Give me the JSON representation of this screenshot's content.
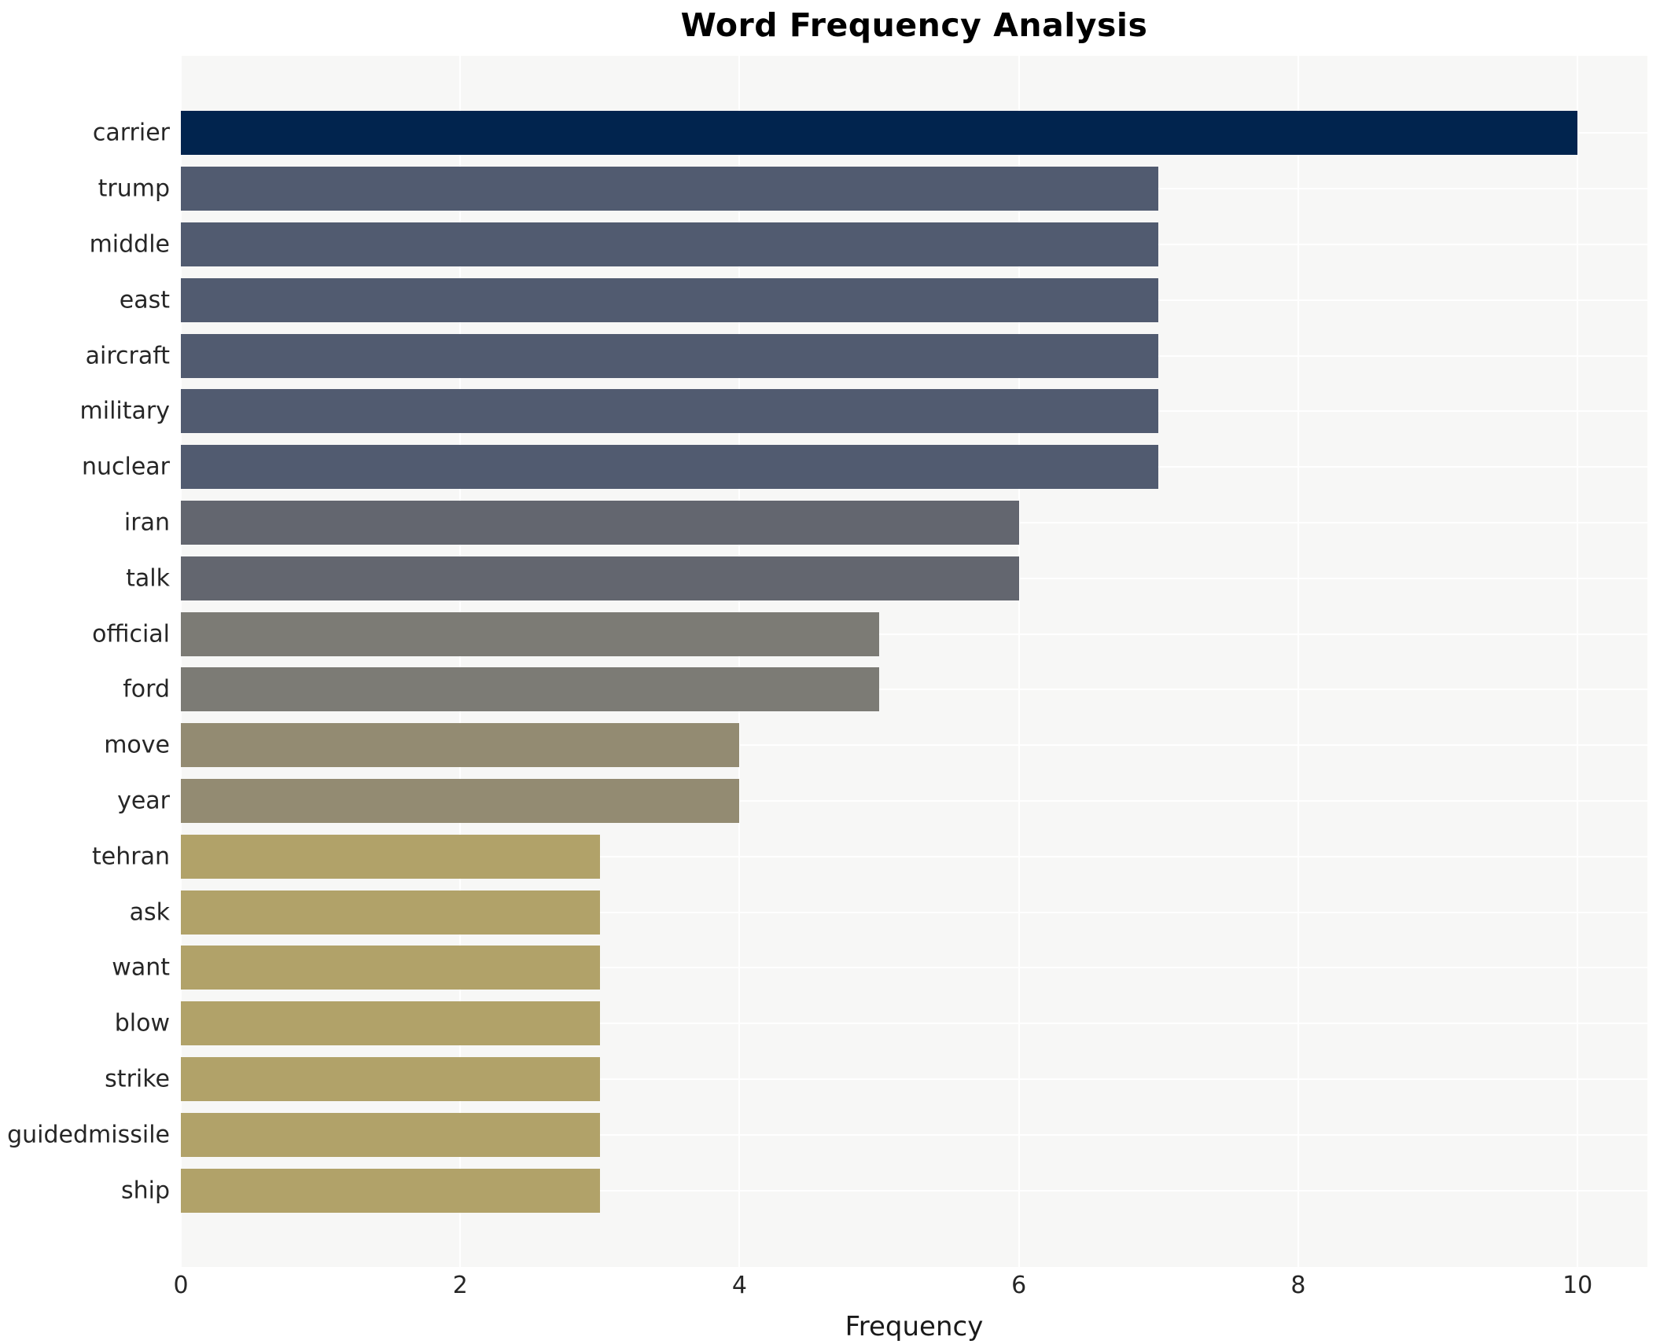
{
  "chart_data": {
    "type": "bar",
    "orientation": "horizontal",
    "title": "Word Frequency Analysis",
    "xlabel": "Frequency",
    "ylabel": "",
    "categories": [
      "carrier",
      "trump",
      "middle",
      "east",
      "aircraft",
      "military",
      "nuclear",
      "iran",
      "talk",
      "official",
      "ford",
      "move",
      "year",
      "tehran",
      "ask",
      "want",
      "blow",
      "strike",
      "guidedmissile",
      "ship"
    ],
    "values": [
      10,
      7,
      7,
      7,
      7,
      7,
      7,
      6,
      6,
      5,
      5,
      4,
      4,
      3,
      3,
      3,
      3,
      3,
      3,
      3
    ],
    "bar_colors": [
      "#01244e",
      "#515b70",
      "#515b70",
      "#515b70",
      "#515b70",
      "#515b70",
      "#515b70",
      "#63666f",
      "#63666f",
      "#7c7b75",
      "#7c7b75",
      "#938b72",
      "#938b72",
      "#b1a269",
      "#b1a269",
      "#b1a269",
      "#b1a269",
      "#b1a269",
      "#b1a269",
      "#b1a269"
    ],
    "xticks": [
      0,
      2,
      4,
      6,
      8,
      10
    ],
    "xlim": [
      0,
      10.5
    ],
    "grid": true,
    "legend_position": "none",
    "plot_background": "#f7f7f6",
    "grid_color": "#ffffff"
  }
}
